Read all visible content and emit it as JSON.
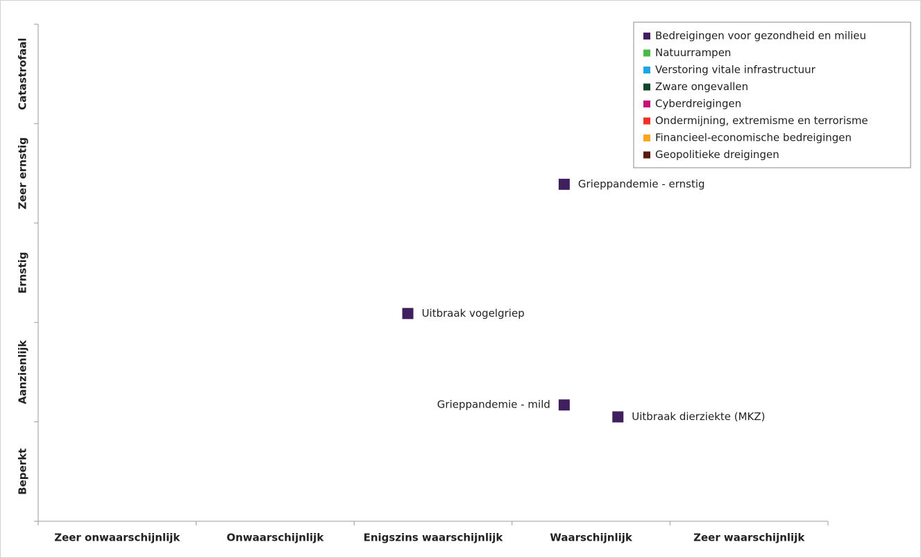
{
  "chart_data": {
    "type": "scatter",
    "x_categories": [
      "Zeer onwaarschijnlijk",
      "Onwaarschijnlijk",
      "Enigszins waarschijnlijk",
      "Waarschijnlijk",
      "Zeer waarschijnlijk"
    ],
    "y_categories": [
      "Beperkt",
      "Aanzienlijk",
      "Ernstig",
      "Zeer ernstig",
      "Catastrofaal"
    ],
    "xlim": [
      0,
      5
    ],
    "ylim": [
      0,
      5
    ],
    "xticks": [
      0,
      1,
      2,
      3,
      4,
      5
    ],
    "yticks": [
      0,
      1,
      2,
      3,
      4,
      5
    ],
    "legend": "top-right",
    "series": [
      {
        "name": "Bedreigingen voor gezondheid en milieu",
        "color": "#3f1f5e",
        "x": [
          3.33,
          2.34,
          3.33,
          3.67
        ],
        "values": [
          3.39,
          2.09,
          1.17,
          1.05
        ],
        "labels": [
          "Grieppandemie - ernstig",
          "Uitbraak vogelgriep",
          "Grieppandemie - mild",
          "Uitbraak dierziekte (MKZ)"
        ]
      },
      {
        "name": "Natuurrampen",
        "color": "#4cb848",
        "x": [],
        "values": [],
        "labels": []
      },
      {
        "name": "Verstoring vitale infrastructuur",
        "color": "#1ea7e0",
        "x": [],
        "values": [],
        "labels": []
      },
      {
        "name": "Zware ongevallen",
        "color": "#0f4727",
        "x": [],
        "values": [],
        "labels": []
      },
      {
        "name": "Cyberdreigingen",
        "color": "#c4127a",
        "x": [],
        "values": [],
        "labels": []
      },
      {
        "name": "Ondermijning, extremisme en terrorisme",
        "color": "#ee3124",
        "x": [],
        "values": [],
        "labels": []
      },
      {
        "name": "Financieel-economische bedreigingen",
        "color": "#f5a623",
        "x": [],
        "values": [],
        "labels": []
      },
      {
        "name": "Geopolitieke dreigingen",
        "color": "#5a1a0e",
        "x": [],
        "values": [],
        "labels": []
      }
    ]
  }
}
